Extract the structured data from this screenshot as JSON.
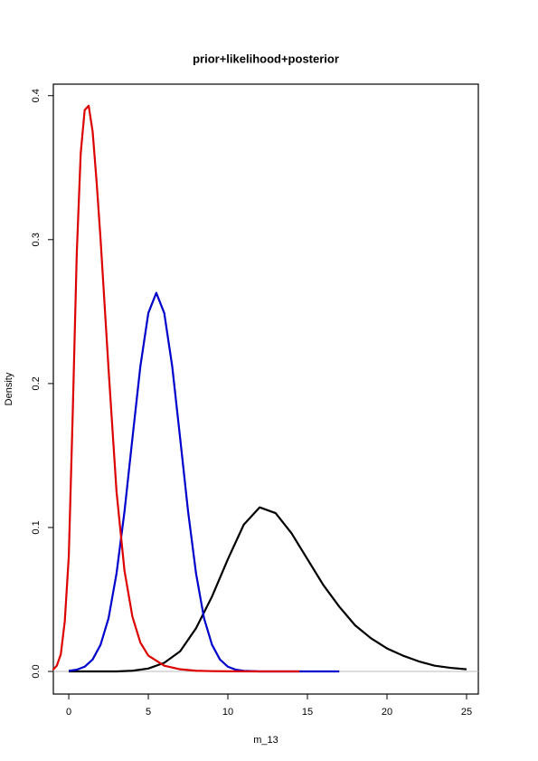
{
  "chart_data": {
    "type": "line",
    "title": "prior+likelihood+posterior",
    "x_label": "m_13",
    "y_label": "Density",
    "xlim": [
      -0.97,
      25.74
    ],
    "ylim": [
      -0.0157,
      0.408
    ],
    "xticks": [
      0,
      5,
      10,
      15,
      20,
      25
    ],
    "yticks": [
      {
        "value": 0,
        "label": "0.0"
      },
      0.1,
      0.2,
      0.3,
      0.4
    ],
    "hline": 0,
    "hline_color": "#bbbbbb",
    "series": [
      {
        "color": "#000000",
        "x": [
          0,
          1,
          2,
          3,
          4,
          5,
          6,
          7,
          8,
          9,
          10,
          11,
          12,
          13,
          14,
          15,
          16,
          17,
          18,
          19,
          20,
          21,
          22,
          23,
          24,
          25
        ],
        "values": [
          0,
          0,
          0,
          0,
          0.0005,
          0.002,
          0.006,
          0.014,
          0.03,
          0.052,
          0.078,
          0.102,
          0.114,
          0.11,
          0.096,
          0.078,
          0.06,
          0.045,
          0.032,
          0.023,
          0.016,
          0.011,
          0.007,
          0.004,
          0.0025,
          0.0015
        ]
      },
      {
        "color": "#0000cc",
        "x": [
          0,
          0.5,
          1,
          1.5,
          2,
          2.5,
          3,
          3.5,
          4,
          4.5,
          5,
          5.5,
          6,
          6.5,
          7,
          7.5,
          8,
          8.5,
          9,
          9.5,
          10,
          10.5,
          11,
          12,
          13,
          14,
          15,
          16,
          17
        ],
        "values": [
          0.0004,
          0.0012,
          0.0033,
          0.0083,
          0.0186,
          0.037,
          0.068,
          0.111,
          0.162,
          0.212,
          0.249,
          0.263,
          0.249,
          0.212,
          0.162,
          0.111,
          0.068,
          0.037,
          0.0186,
          0.0083,
          0.0033,
          0.0012,
          0.0004,
          0,
          0,
          0,
          0,
          0,
          0
        ]
      },
      {
        "color": "#dd0000",
        "x": [
          -1,
          -0.75,
          -0.5,
          -0.25,
          0,
          0.25,
          0.5,
          0.75,
          1,
          1.25,
          1.5,
          1.75,
          2,
          2.5,
          3,
          3.5,
          4,
          4.5,
          5,
          6,
          7,
          8,
          9,
          10,
          12,
          14.5
        ],
        "values": [
          0.001,
          0.004,
          0.012,
          0.035,
          0.08,
          0.18,
          0.29,
          0.36,
          0.39,
          0.393,
          0.375,
          0.34,
          0.3,
          0.21,
          0.125,
          0.07,
          0.038,
          0.02,
          0.011,
          0.004,
          0.0015,
          0.0005,
          0.0002,
          0.0001,
          0,
          0
        ]
      }
    ]
  }
}
